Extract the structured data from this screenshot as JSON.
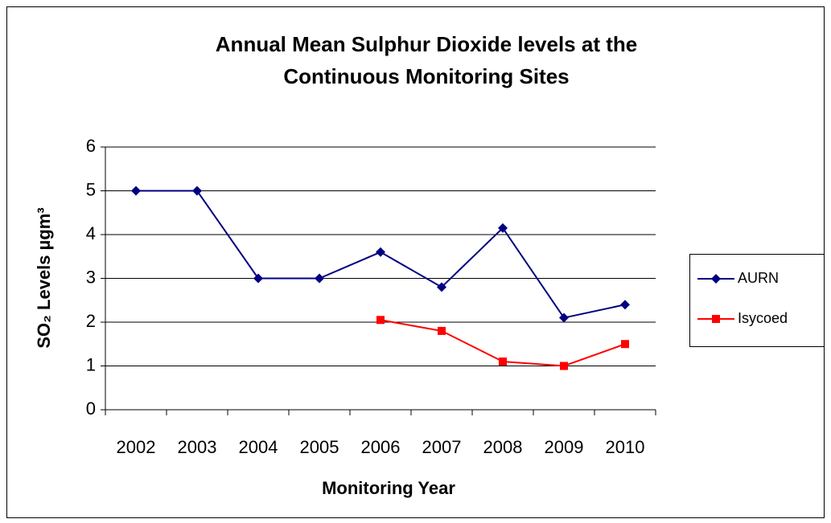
{
  "chart_data": {
    "type": "line",
    "title": [
      "Annual Mean Sulphur Dioxide levels at the",
      "Continuous Monitoring Sites"
    ],
    "x_label": "Monitoring Year",
    "y_label": "SO₂ Levels µgm³",
    "categories": [
      "2002",
      "2003",
      "2004",
      "2005",
      "2006",
      "2007",
      "2008",
      "2009",
      "2010"
    ],
    "series": [
      {
        "name": "AURN",
        "color": "#000080",
        "marker": "diamond",
        "values": [
          5,
          5,
          3,
          3,
          3.6,
          2.8,
          4.15,
          2.1,
          2.4
        ]
      },
      {
        "name": "Isycoed",
        "color": "#ff0000",
        "marker": "square",
        "values": [
          null,
          null,
          null,
          null,
          2.05,
          1.8,
          1.1,
          1.0,
          1.5
        ]
      }
    ],
    "ylim": [
      0,
      6
    ],
    "yticks": [
      0,
      1,
      2,
      3,
      4,
      5,
      6
    ],
    "grid": true,
    "legend": "right"
  }
}
